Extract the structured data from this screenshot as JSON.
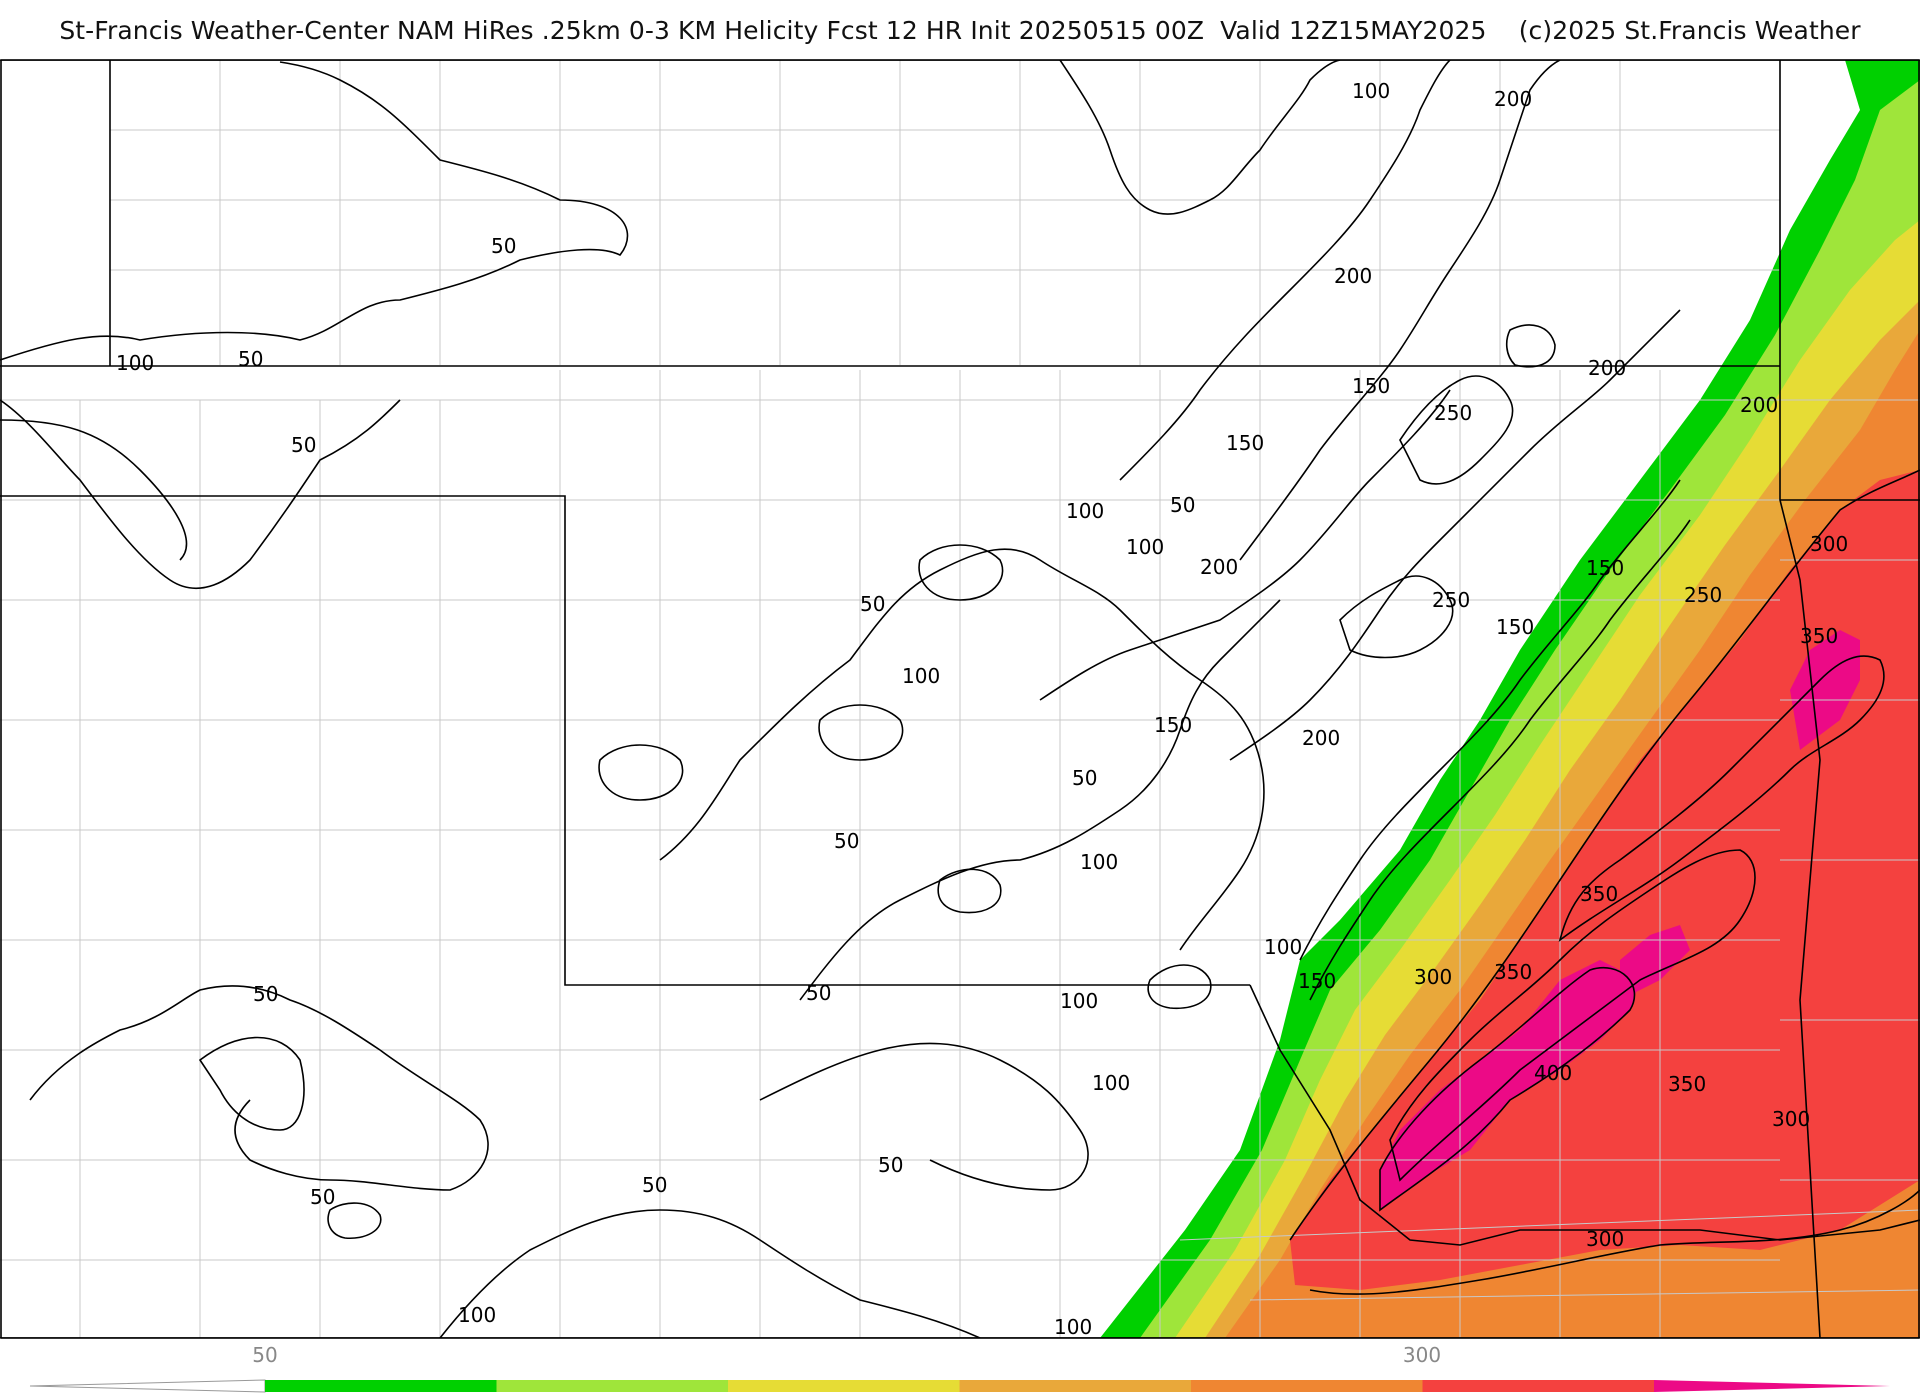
{
  "title": "St-Francis Weather-Center NAM HiRes .25km 0-3 KM Helicity Fcst 12 HR Init 20250515 00Z  Valid 12Z15MAY2025    (c)2025 St.Francis Weather",
  "colors": {
    "c50": "#00d000",
    "c100": "#9fe53a",
    "c150": "#e6dc35",
    "c200": "#e9a83a",
    "c250": "#ef8632",
    "c300": "#f4413f",
    "c350": "#ec0a86",
    "contour": "#000000",
    "border": "#000000",
    "county": "#c8c8c8"
  },
  "colorbar": {
    "tick_labels": [
      {
        "value": 50,
        "text": "50"
      },
      {
        "value": 300,
        "text": "300"
      }
    ],
    "bins": [
      0,
      50,
      100,
      150,
      200,
      250,
      300,
      350,
      400
    ]
  },
  "contour_labels": [
    {
      "text": "100"
    },
    {
      "text": "200"
    },
    {
      "text": "50"
    },
    {
      "text": "200"
    },
    {
      "text": "100"
    },
    {
      "text": "50"
    },
    {
      "text": "50"
    },
    {
      "text": "150"
    },
    {
      "text": "200"
    },
    {
      "text": "150"
    },
    {
      "text": "250"
    },
    {
      "text": "200"
    },
    {
      "text": "100"
    },
    {
      "text": "50"
    },
    {
      "text": "100"
    },
    {
      "text": "200"
    },
    {
      "text": "300"
    },
    {
      "text": "150"
    },
    {
      "text": "250"
    },
    {
      "text": "250"
    },
    {
      "text": "50"
    },
    {
      "text": "150"
    },
    {
      "text": "350"
    },
    {
      "text": "100"
    },
    {
      "text": "150"
    },
    {
      "text": "200"
    },
    {
      "text": "50"
    },
    {
      "text": "50"
    },
    {
      "text": "100"
    },
    {
      "text": "350"
    },
    {
      "text": "100"
    },
    {
      "text": "150"
    },
    {
      "text": "300"
    },
    {
      "text": "350"
    },
    {
      "text": "50"
    },
    {
      "text": "50"
    },
    {
      "text": "100"
    },
    {
      "text": "400"
    },
    {
      "text": "350"
    },
    {
      "text": "100"
    },
    {
      "text": "300"
    },
    {
      "text": "50"
    },
    {
      "text": "50"
    },
    {
      "text": "50"
    },
    {
      "text": "300"
    },
    {
      "text": "100"
    },
    {
      "text": "100"
    }
  ]
}
